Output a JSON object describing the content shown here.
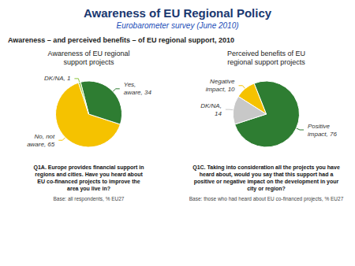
{
  "title": "Awareness of EU Regional Policy",
  "subtitle": "Eurobarometer survey (June 2010)",
  "annotations": [
    "Awareness – and perceived benefits – of EU regional support, 2010"
  ],
  "chart_data": [
    {
      "type": "pie",
      "title": "Awareness of EU regional\nsupport projects",
      "values": [
        65,
        34,
        1
      ],
      "value_labels": [
        "No, not\naware, 65",
        "Yes,\naware, 34",
        "DK/NA, 1"
      ],
      "data_labels": true,
      "colors": [
        "#f5c200",
        "#2e7d32",
        "#8dc63f"
      ],
      "annotations": [
        "Q1A. Europe provides financial support in\nregions and cities. Have you heard about\nEU co-financed projects to improve the\narea you live in?",
        "Base: all respondents, % EU27"
      ]
    },
    {
      "type": "pie",
      "title": "Perceived benefits of EU\nregional support projects",
      "values": [
        76,
        10,
        14
      ],
      "value_labels": [
        "Positive\nimpact, 76",
        "Negative\nimpact, 10",
        "DK/NA,\n14"
      ],
      "data_labels": true,
      "colors": [
        "#2e7d32",
        "#f5c200",
        "#c8c8c8"
      ],
      "annotations": [
        "Q1C. Taking into consideration all the projects you have\nheard about, would you say that this support had a\npositive or negative impact on the development in your\ncity or region?",
        "Base: those who had heard about EU co-financed projects, % EU27"
      ]
    }
  ]
}
